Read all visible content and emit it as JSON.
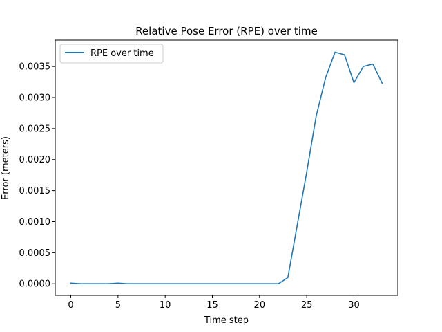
{
  "chart_data": {
    "type": "line",
    "title": "Relative Pose Error (RPE) over time",
    "xlabel": "Time step",
    "ylabel": "Error (meters)",
    "xlim": [
      -1.65,
      34.65
    ],
    "ylim": [
      -0.000187,
      0.003925
    ],
    "xticks": [
      0,
      5,
      10,
      15,
      20,
      25,
      30
    ],
    "xtick_labels": [
      "0",
      "5",
      "10",
      "15",
      "20",
      "25",
      "30"
    ],
    "yticks": [
      0.0,
      0.0005,
      0.001,
      0.0015,
      0.002,
      0.0025,
      0.003,
      0.0035
    ],
    "ytick_labels": [
      "0.0000",
      "0.0005",
      "0.0010",
      "0.0015",
      "0.0020",
      "0.0025",
      "0.0030",
      "0.0035"
    ],
    "grid": false,
    "legend_position": "top-left",
    "series": [
      {
        "name": "RPE over time",
        "color": "#1f77b4",
        "x": [
          0,
          1,
          2,
          3,
          4,
          5,
          6,
          7,
          8,
          9,
          10,
          11,
          12,
          13,
          14,
          15,
          16,
          17,
          18,
          19,
          20,
          21,
          22,
          23,
          24,
          25,
          26,
          27,
          28,
          29,
          30,
          31,
          32,
          33
        ],
        "y": [
          1e-05,
          0.0,
          0.0,
          0.0,
          0.0,
          1e-05,
          0.0,
          0.0,
          0.0,
          0.0,
          0.0,
          0.0,
          0.0,
          0.0,
          0.0,
          0.0,
          0.0,
          0.0,
          0.0,
          0.0,
          0.0,
          0.0,
          0.0,
          0.0001,
          0.00095,
          0.0018,
          0.0027,
          0.00332,
          0.00373,
          0.00369,
          0.00324,
          0.0035,
          0.00354,
          0.00323
        ]
      }
    ]
  }
}
